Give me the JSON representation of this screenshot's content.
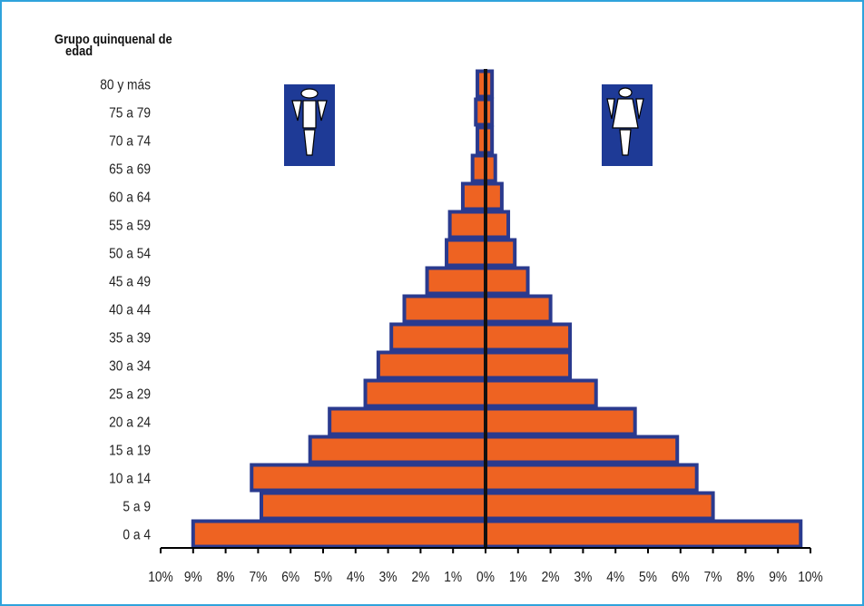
{
  "y_axis_title_line1": "Grupo quinquenal de",
  "y_axis_title_line2": "edad",
  "icons": {
    "male": "male-figure-icon",
    "female": "female-figure-icon"
  },
  "colors": {
    "bar_fill": "#ee6322",
    "bar_stroke": "#2a3a8e",
    "axis": "#000000",
    "frame": "#2fa3dc",
    "icon_bg": "#1e3a96"
  },
  "chart_data": {
    "type": "bar",
    "orientation": "horizontal",
    "subtype": "population-pyramid",
    "ylabel": "Grupo quinquenal de edad",
    "xlim": [
      -10,
      10
    ],
    "x_ticks": [
      "10%",
      "9%",
      "8%",
      "7%",
      "6%",
      "5%",
      "4%",
      "3%",
      "2%",
      "1%",
      "0%",
      "1%",
      "2%",
      "3%",
      "4%",
      "5%",
      "6%",
      "7%",
      "8%",
      "9%",
      "10%"
    ],
    "categories": [
      "0 a 4",
      "5 a 9",
      "10  a 14",
      "15 a 19",
      "20 a 24",
      "25 a 29",
      "30 a 34",
      "35 a 39",
      "40 a 44",
      "45 a 49",
      "50 a 54",
      "55 a 59",
      "60 a 64",
      "65 a 69",
      "70 a 74",
      "75 a 79",
      "80 y más"
    ],
    "series": [
      {
        "values": [
          9.0,
          6.9,
          7.2,
          5.4,
          4.8,
          3.7,
          3.3,
          2.9,
          2.5,
          1.8,
          1.2,
          1.1,
          0.7,
          0.4,
          0.25,
          0.3,
          0.25
        ]
      },
      {
        "values": [
          9.7,
          7.0,
          6.5,
          5.9,
          4.6,
          3.4,
          2.6,
          2.6,
          2.0,
          1.3,
          0.9,
          0.7,
          0.5,
          0.3,
          0.2,
          0.2,
          0.2
        ]
      }
    ],
    "grid": false,
    "legend": "icons-top"
  }
}
